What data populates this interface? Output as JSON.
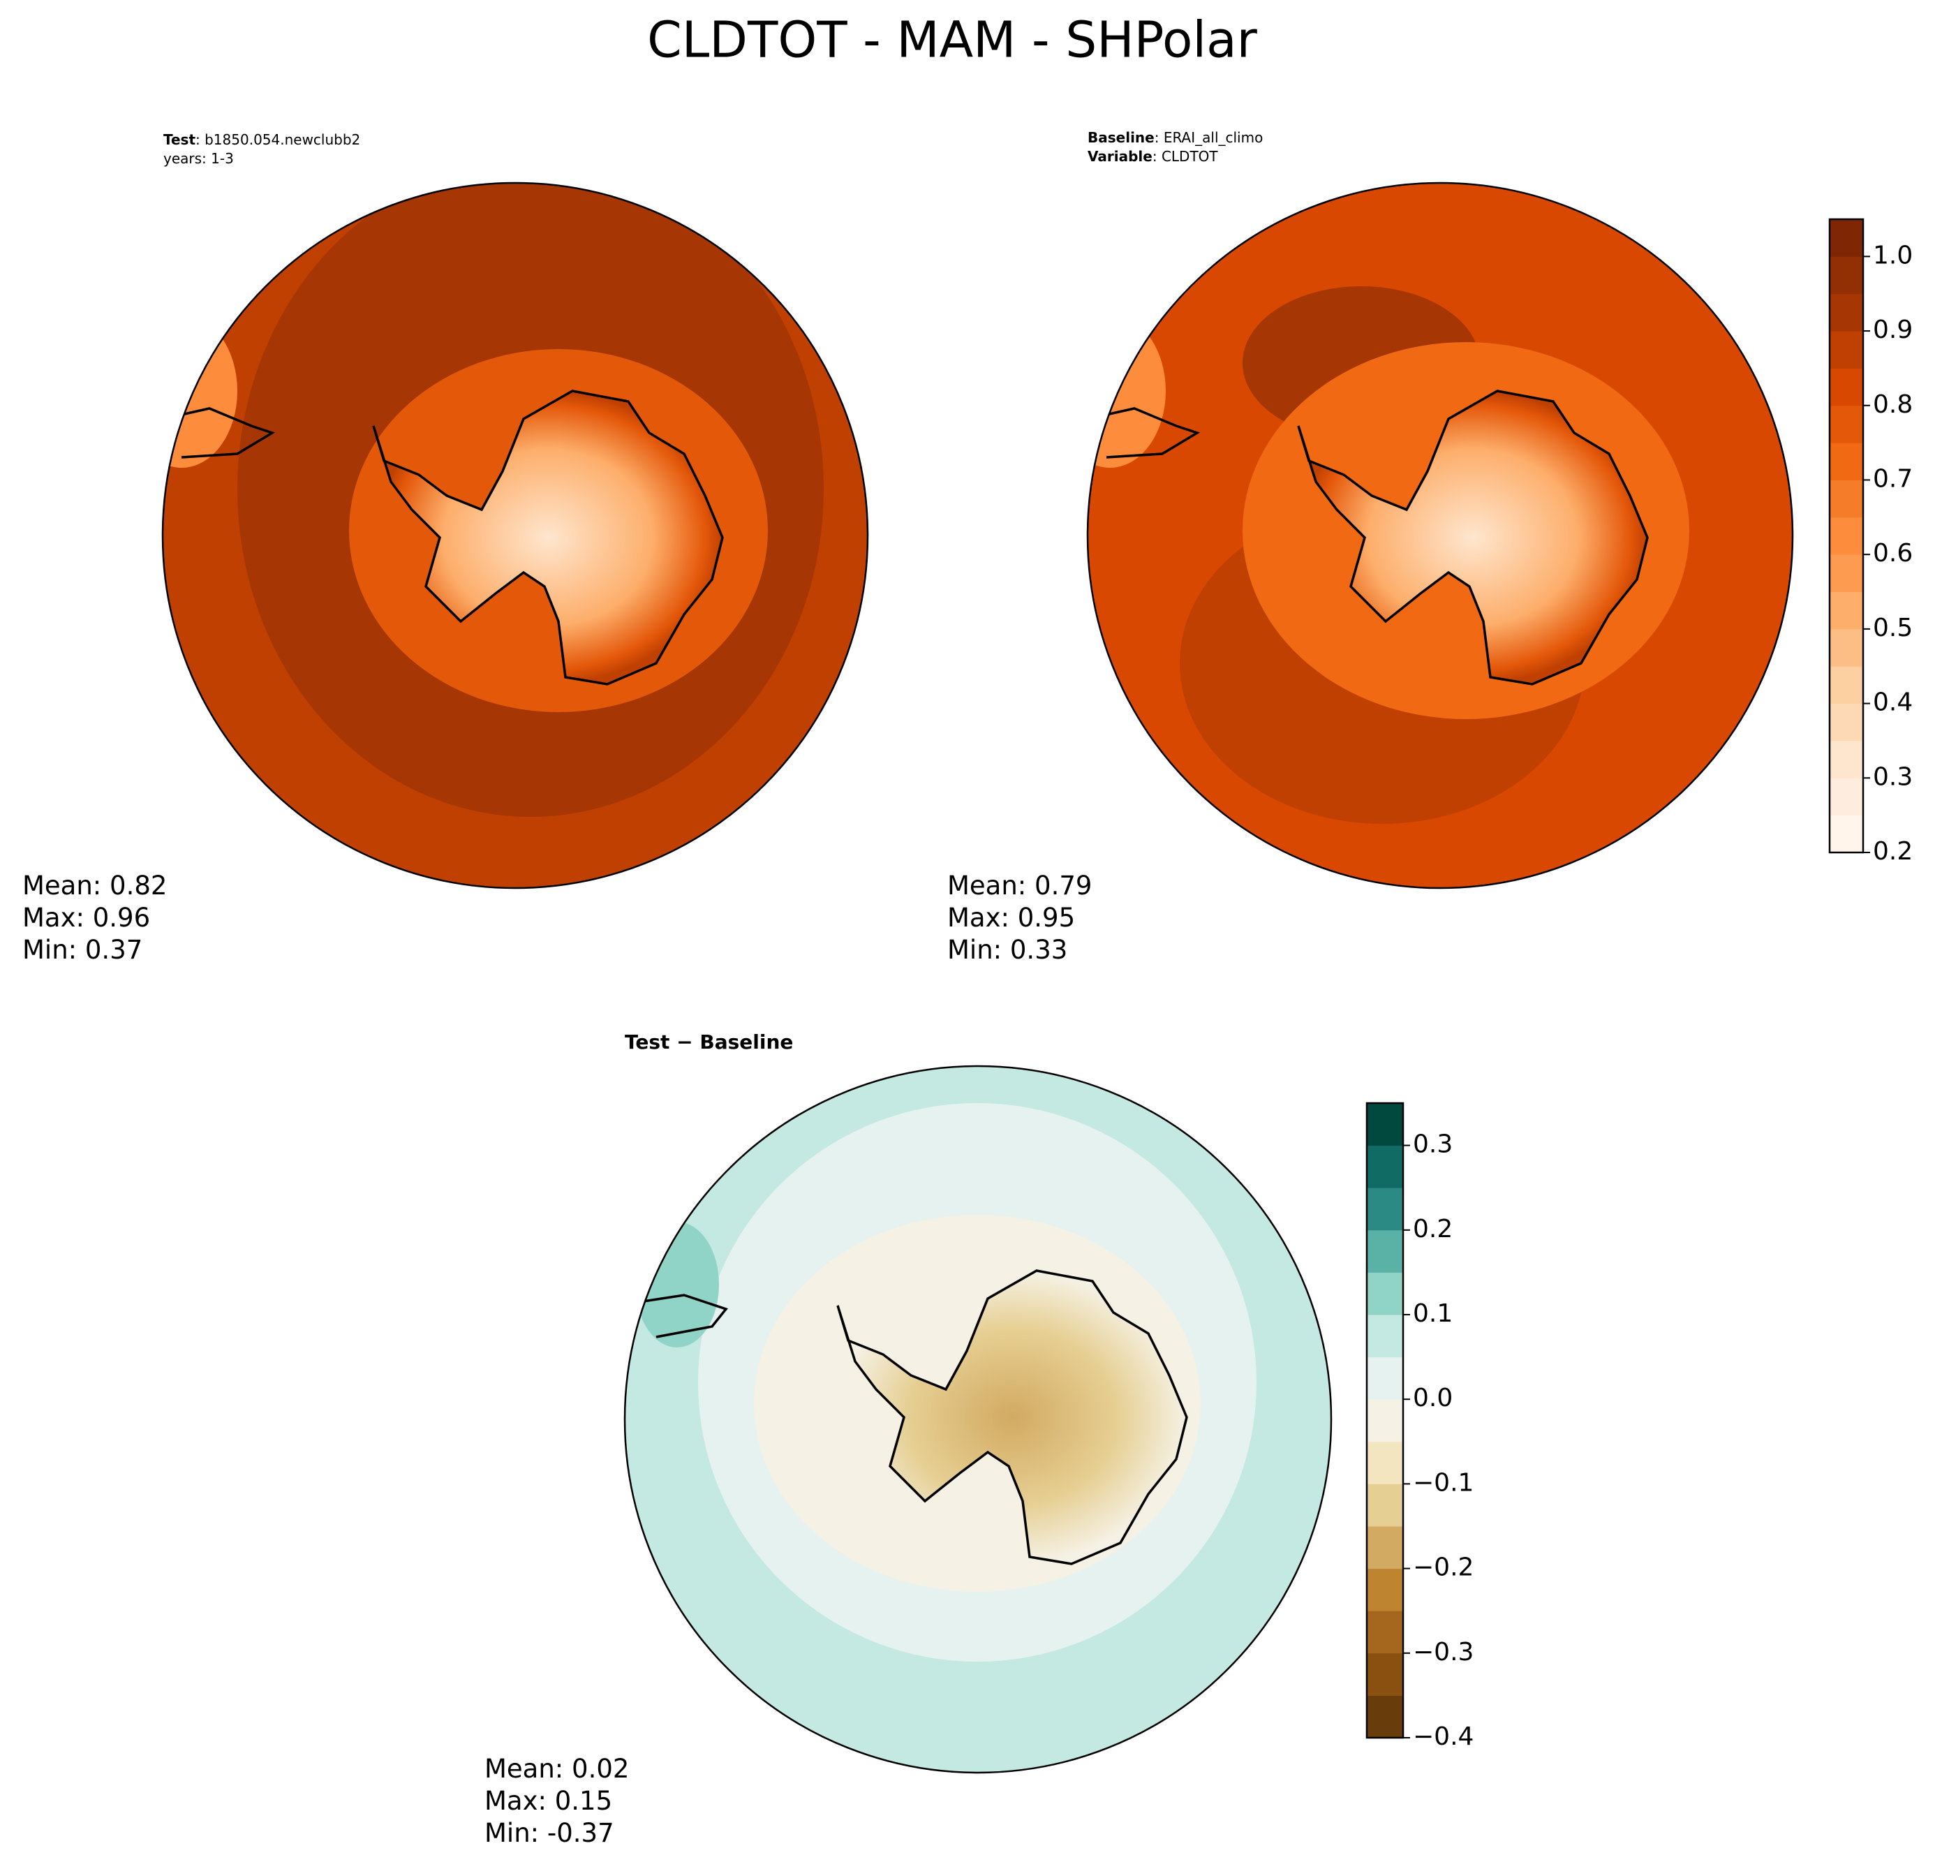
{
  "title": "CLDTOT - MAM - SHPolar",
  "panels": [
    {
      "header": [
        {
          "key": "Test",
          "text": ": b1850.054.newclubb2"
        },
        {
          "key": null,
          "text": "years: 1-3"
        }
      ],
      "stats": [
        {
          "label": "Mean:",
          "value": 0.82
        },
        {
          "label": "Max:",
          "value": 0.96
        },
        {
          "label": "Min:",
          "value": 0.37
        }
      ]
    },
    {
      "header": [
        {
          "key": "Baseline",
          "text": ": ERAI_all_climo"
        },
        {
          "key": "Variable",
          "text": ": CLDTOT"
        }
      ],
      "stats": [
        {
          "label": "Mean:",
          "value": 0.79
        },
        {
          "label": "Max:",
          "value": 0.95
        },
        {
          "label": "Min:",
          "value": 0.33
        }
      ]
    },
    {
      "header": [
        {
          "key": "Test − Baseline",
          "text": null
        }
      ],
      "stats": [
        {
          "label": "Mean:",
          "value": 0.02
        },
        {
          "label": "Max:",
          "value": 0.15
        },
        {
          "label": "Min:",
          "value": -0.37
        }
      ]
    }
  ],
  "colorbars": [
    {
      "lim": [
        0.2,
        1.05
      ],
      "ticks": [
        0.2,
        0.3,
        0.4,
        0.5,
        0.6,
        0.7,
        0.8,
        0.9,
        {
          "value": 1,
          "label": "1.0"
        }
      ],
      "colors": [
        "#fff5eb",
        "#feeddc",
        "#fee6ce",
        "#fdd9b4",
        "#fdd0a2",
        "#fdbe85",
        "#fdae6b",
        "#fd9c51",
        "#fd8d3c",
        "#f57d29",
        "#f16913",
        "#e4580a",
        "#d94801",
        "#c04001",
        "#a63603",
        "#933003",
        "#7f2704"
      ]
    },
    {
      "lim": [
        -0.4,
        0.35
      ],
      "ticks": [
        {
          "value": -0.4,
          "label": "−0.4"
        },
        {
          "value": -0.3,
          "label": "−0.3"
        },
        {
          "value": -0.2,
          "label": "−0.2"
        },
        {
          "value": -0.1,
          "label": "−0.1"
        },
        {
          "value": 0,
          "label": "0.0"
        },
        0.1,
        0.2,
        0.3
      ],
      "colors": [
        "#683c0b",
        "#8a5010",
        "#a5661d",
        "#bf842f",
        "#d2aa62",
        "#e6cf93",
        "#f2e5bf",
        "#f5f1e4",
        "#e6f2ef",
        "#c4e8e2",
        "#90d3c7",
        "#5ab2a6",
        "#2b8b84",
        "#0f6b63",
        "#01493f"
      ]
    }
  ]
}
